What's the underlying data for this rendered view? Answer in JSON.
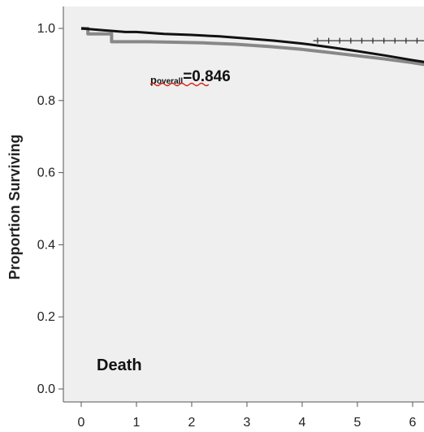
{
  "chart_data": {
    "type": "line",
    "ylabel": "Proportion Surviving",
    "xlabel": "",
    "xlim": [
      0,
      6.3
    ],
    "ylim": [
      0.0,
      1.0
    ],
    "x_ticks": [
      "0",
      "1",
      "2",
      "3",
      "4",
      "5",
      "6"
    ],
    "y_ticks": [
      "0.0",
      "0.2",
      "0.4",
      "0.6",
      "0.8",
      "1.0"
    ],
    "grid": false,
    "background": "#efefef",
    "annotations": {
      "p_prefix": "p",
      "p_subscript": "overall",
      "p_value": "=0.846",
      "panel_label": "Death"
    },
    "series": [
      {
        "color": "#888888",
        "x": [
          0,
          0.12,
          0.12,
          0.55,
          0.55,
          1.2,
          1.6,
          2.2,
          2.8,
          3.4,
          4.0,
          4.5,
          5.0,
          5.5,
          6.0,
          6.3
        ],
        "y": [
          1.0,
          1.0,
          0.985,
          0.985,
          0.963,
          0.963,
          0.962,
          0.96,
          0.956,
          0.95,
          0.942,
          0.933,
          0.924,
          0.915,
          0.905,
          0.898
        ]
      },
      {
        "color": "#111111",
        "x": [
          0,
          0.4,
          0.8,
          1.0,
          1.5,
          2.0,
          2.5,
          3.0,
          3.5,
          4.0,
          4.5,
          5.0,
          5.5,
          6.0,
          6.3
        ],
        "y": [
          1.0,
          0.995,
          0.99,
          0.99,
          0.985,
          0.982,
          0.978,
          0.972,
          0.966,
          0.958,
          0.948,
          0.937,
          0.925,
          0.912,
          0.905
        ]
      },
      {
        "color": "#333333",
        "x": [
          4.2,
          6.3
        ],
        "y": [
          0.966,
          0.966
        ]
      }
    ],
    "censor_marks": [
      {
        "series": 2,
        "x": [
          4.28,
          4.48,
          4.68,
          4.88,
          5.08,
          5.28,
          5.48,
          5.68,
          5.88,
          6.08,
          6.25
        ],
        "y": 0.966
      }
    ]
  }
}
